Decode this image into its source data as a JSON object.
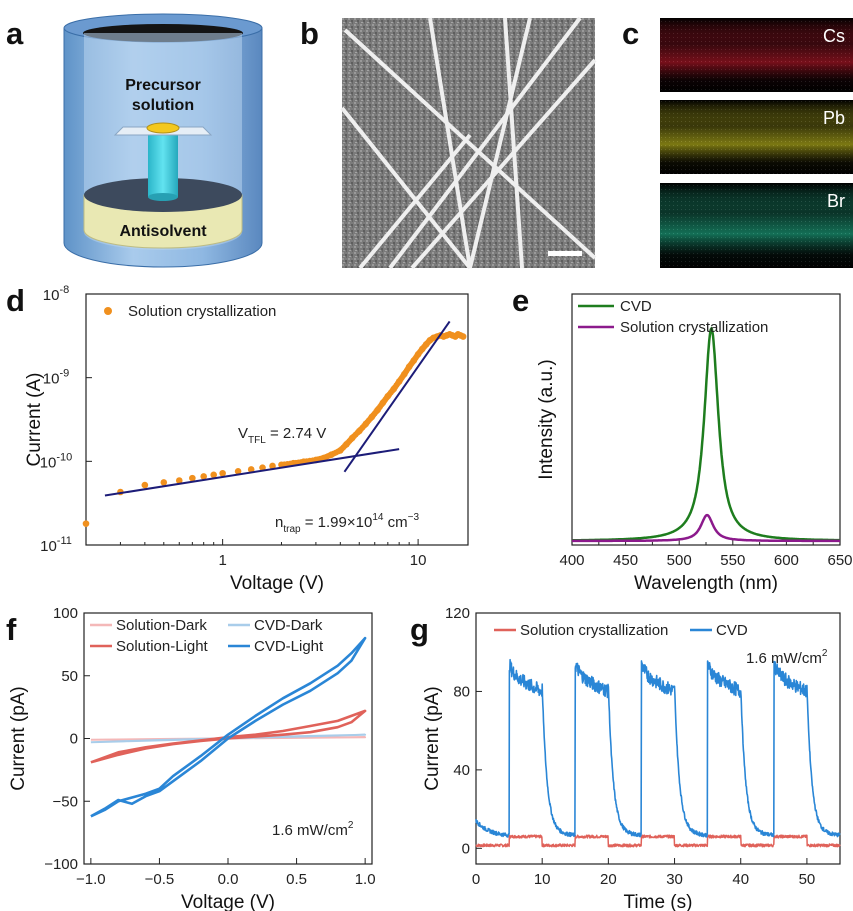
{
  "panels": {
    "a": {
      "letter": "a",
      "label_precursor_line1": "Precursor",
      "label_precursor_line2": "solution",
      "label_antisolvent": "Antisolvent"
    },
    "b": {
      "letter": "b"
    },
    "c": {
      "letter": "c",
      "elements": [
        "Cs",
        "Pb",
        "Br"
      ],
      "colors": [
        "#c0182a",
        "#c9c31e",
        "#1fb58c"
      ]
    },
    "d": {
      "letter": "d"
    },
    "e": {
      "letter": "e"
    },
    "f": {
      "letter": "f"
    },
    "g": {
      "letter": "g"
    }
  },
  "chart_data": [
    {
      "id": "d",
      "type": "scatter",
      "xlabel": "Voltage (V)",
      "ylabel": "Current (A)",
      "xscale": "log",
      "yscale": "log",
      "xlim": [
        0.2,
        18
      ],
      "ylim": [
        1e-11,
        1e-08
      ],
      "xticks": [
        1,
        10
      ],
      "xtick_labels": [
        "1",
        "10"
      ],
      "yticks": [
        1e-11,
        1e-10,
        1e-09,
        1e-08
      ],
      "ytick_base": [
        "10",
        "10",
        "10",
        "10"
      ],
      "ytick_exp": [
        "-11",
        "-10",
        "-9",
        "-8"
      ],
      "legend": "Solution crystallization",
      "legend_position": "top-left",
      "color": "#f0901e",
      "annotation_vtfl_main": "V",
      "annotation_vtfl_sub": "TFL",
      "annotation_vtfl_value": " = 2.74 V",
      "annotation_ntrap_main": "n",
      "annotation_ntrap_sub": "trap",
      "annotation_ntrap_value": " = 1.99×10",
      "annotation_ntrap_exp": "14",
      "annotation_ntrap_unit": " cm",
      "annotation_ntrap_unit_exp": "−3",
      "fit_lines": [
        {
          "x": [
            0.25,
            8.0
          ],
          "y": [
            3.9e-11,
            1.4e-10
          ]
        },
        {
          "x": [
            4.2,
            14.5
          ],
          "y": [
            7.5e-11,
            4.7e-09
          ]
        }
      ],
      "points_x": [
        0.2,
        0.3,
        0.4,
        0.5,
        0.6,
        0.7,
        0.8,
        0.9,
        1.0,
        1.2,
        1.4,
        1.6,
        1.8,
        2.0,
        2.3,
        2.6,
        3.0,
        3.3,
        3.6,
        4.0,
        4.3,
        4.6,
        5.0,
        5.4,
        5.8,
        6.2,
        6.6,
        7.0,
        7.5,
        8.0,
        8.5,
        9.0,
        9.5,
        10.0,
        10.5,
        11.0,
        11.5,
        12.0,
        12.5,
        13.0,
        13.5,
        14.0,
        14.5,
        15.0,
        15.5,
        16.0,
        16.5,
        17.0
      ],
      "points_y": [
        1.8e-11,
        4.3e-11,
        5.2e-11,
        5.6e-11,
        5.9e-11,
        6.3e-11,
        6.6e-11,
        6.9e-11,
        7.2e-11,
        7.6e-11,
        8e-11,
        8.4e-11,
        8.8e-11,
        9.1e-11,
        9.5e-11,
        9.9e-11,
        1.04e-10,
        1.1e-10,
        1.2e-10,
        1.35e-10,
        1.6e-10,
        1.9e-10,
        2.3e-10,
        2.8e-10,
        3.4e-10,
        4.1e-10,
        5e-10,
        6e-10,
        7.3e-10,
        9e-10,
        1.1e-09,
        1.35e-09,
        1.6e-09,
        1.9e-09,
        2.2e-09,
        2.5e-09,
        2.8e-09,
        3e-09,
        3.1e-09,
        3.2e-09,
        3.1e-09,
        3.2e-09,
        3.3e-09,
        3.2e-09,
        3.1e-09,
        3.3e-09,
        3.2e-09,
        3.1e-09
      ]
    },
    {
      "id": "e",
      "type": "line",
      "xlabel": "Wavelength (nm)",
      "ylabel": "Intensity (a.u.)",
      "xlim": [
        400,
        650
      ],
      "ylim": [
        0,
        1.0
      ],
      "xticks": [
        400,
        450,
        500,
        550,
        600,
        650
      ],
      "xtick_labels": [
        "400",
        "450",
        "500",
        "550",
        "600",
        "650"
      ],
      "legend_position": "top-left",
      "series": [
        {
          "name": "CVD",
          "color": "#1e7d1e",
          "peak": 530,
          "fwhm": 16,
          "amp": 0.86
        },
        {
          "name": "Solution crystallization",
          "color": "#8c1a8c",
          "peak": 526,
          "fwhm": 14,
          "amp": 0.105
        }
      ]
    },
    {
      "id": "f",
      "type": "line",
      "xlabel": "Voltage (V)",
      "ylabel": "Current (pA)",
      "xlim": [
        -1.05,
        1.05
      ],
      "ylim": [
        -100,
        100
      ],
      "xticks": [
        -1.0,
        -0.5,
        0.0,
        0.5,
        1.0
      ],
      "xtick_labels": [
        "−1.0",
        "−0.5",
        "0.0",
        "0.5",
        "1.0"
      ],
      "yticks": [
        -100,
        -50,
        0,
        50,
        100
      ],
      "ytick_labels": [
        "−100",
        "−50",
        "0",
        "50",
        "100"
      ],
      "annotation": "1.6 mW/cm",
      "annotation_exp": "2",
      "legend_position": "top",
      "series": [
        {
          "name": "Solution-Dark",
          "color": "#f4b8b8",
          "x": [
            -1.0,
            -0.5,
            0.0,
            0.5,
            1.0,
            0.5,
            0.0,
            -0.5,
            -1.0
          ],
          "y": [
            -1.0,
            -0.5,
            0.0,
            0.5,
            1.0,
            0.6,
            0.1,
            -0.4,
            -1.0
          ]
        },
        {
          "name": "CVD-Dark",
          "color": "#a9cdea",
          "x": [
            -1.0,
            -0.5,
            0.0,
            0.5,
            1.0,
            0.5,
            0.0,
            -0.5,
            -1.0
          ],
          "y": [
            -3.0,
            -1.5,
            0.0,
            1.5,
            3.0,
            1.8,
            0.3,
            -1.2,
            -3.0
          ]
        },
        {
          "name": "Solution-Light",
          "color": "#e0625a",
          "x": [
            -1.0,
            -0.8,
            -0.6,
            -0.4,
            -0.2,
            0.0,
            0.2,
            0.4,
            0.6,
            0.8,
            0.9,
            1.0,
            0.9,
            0.8,
            0.6,
            0.4,
            0.2,
            0.0,
            -0.2,
            -0.4,
            -0.6,
            -0.8,
            -1.0
          ],
          "y": [
            -19,
            -13,
            -8,
            -4.5,
            -2,
            0,
            1.5,
            3,
            5,
            9,
            13,
            22,
            18,
            14,
            10,
            6,
            3,
            1,
            -1.5,
            -4,
            -7,
            -11,
            -19
          ]
        },
        {
          "name": "CVD-Light",
          "color": "#2a86d6",
          "x": [
            -1.0,
            -0.9,
            -0.8,
            -0.7,
            -0.6,
            -0.5,
            -0.4,
            -0.2,
            0.0,
            0.2,
            0.4,
            0.6,
            0.8,
            0.9,
            1.0,
            0.9,
            0.8,
            0.6,
            0.4,
            0.2,
            0.0,
            -0.2,
            -0.4,
            -0.5,
            -0.6,
            -0.7,
            -0.8,
            -0.9,
            -1.0
          ],
          "y": [
            -62,
            -56,
            -49,
            -52,
            -46,
            -42,
            -34,
            -18,
            0,
            14,
            27,
            38,
            52,
            62,
            80,
            68,
            58,
            44,
            32,
            18,
            3,
            -14,
            -30,
            -40,
            -44,
            -47,
            -50,
            -57,
            -62
          ]
        }
      ]
    },
    {
      "id": "g",
      "type": "line",
      "xlabel": "Time (s)",
      "ylabel": "Current (pA)",
      "xlim": [
        0,
        55
      ],
      "ylim": [
        -8,
        120
      ],
      "xticks": [
        0,
        10,
        20,
        30,
        40,
        50
      ],
      "xtick_labels": [
        "0",
        "10",
        "20",
        "30",
        "40",
        "50"
      ],
      "yticks": [
        0,
        40,
        80,
        120
      ],
      "ytick_labels": [
        "0",
        "40",
        "80",
        "120"
      ],
      "annotation": "1.6 mW/cm",
      "annotation_exp": "2",
      "legend_position": "top",
      "light_on": [
        5,
        15,
        25,
        35,
        45
      ],
      "light_off": [
        10,
        20,
        30,
        40,
        50
      ],
      "series": [
        {
          "name": "Solution crystallization",
          "color": "#e0625a",
          "dark": 1.5,
          "on_level": 6
        },
        {
          "name": "CVD",
          "color": "#2a86d6",
          "dark": 6,
          "on_level": 88
        }
      ]
    }
  ]
}
